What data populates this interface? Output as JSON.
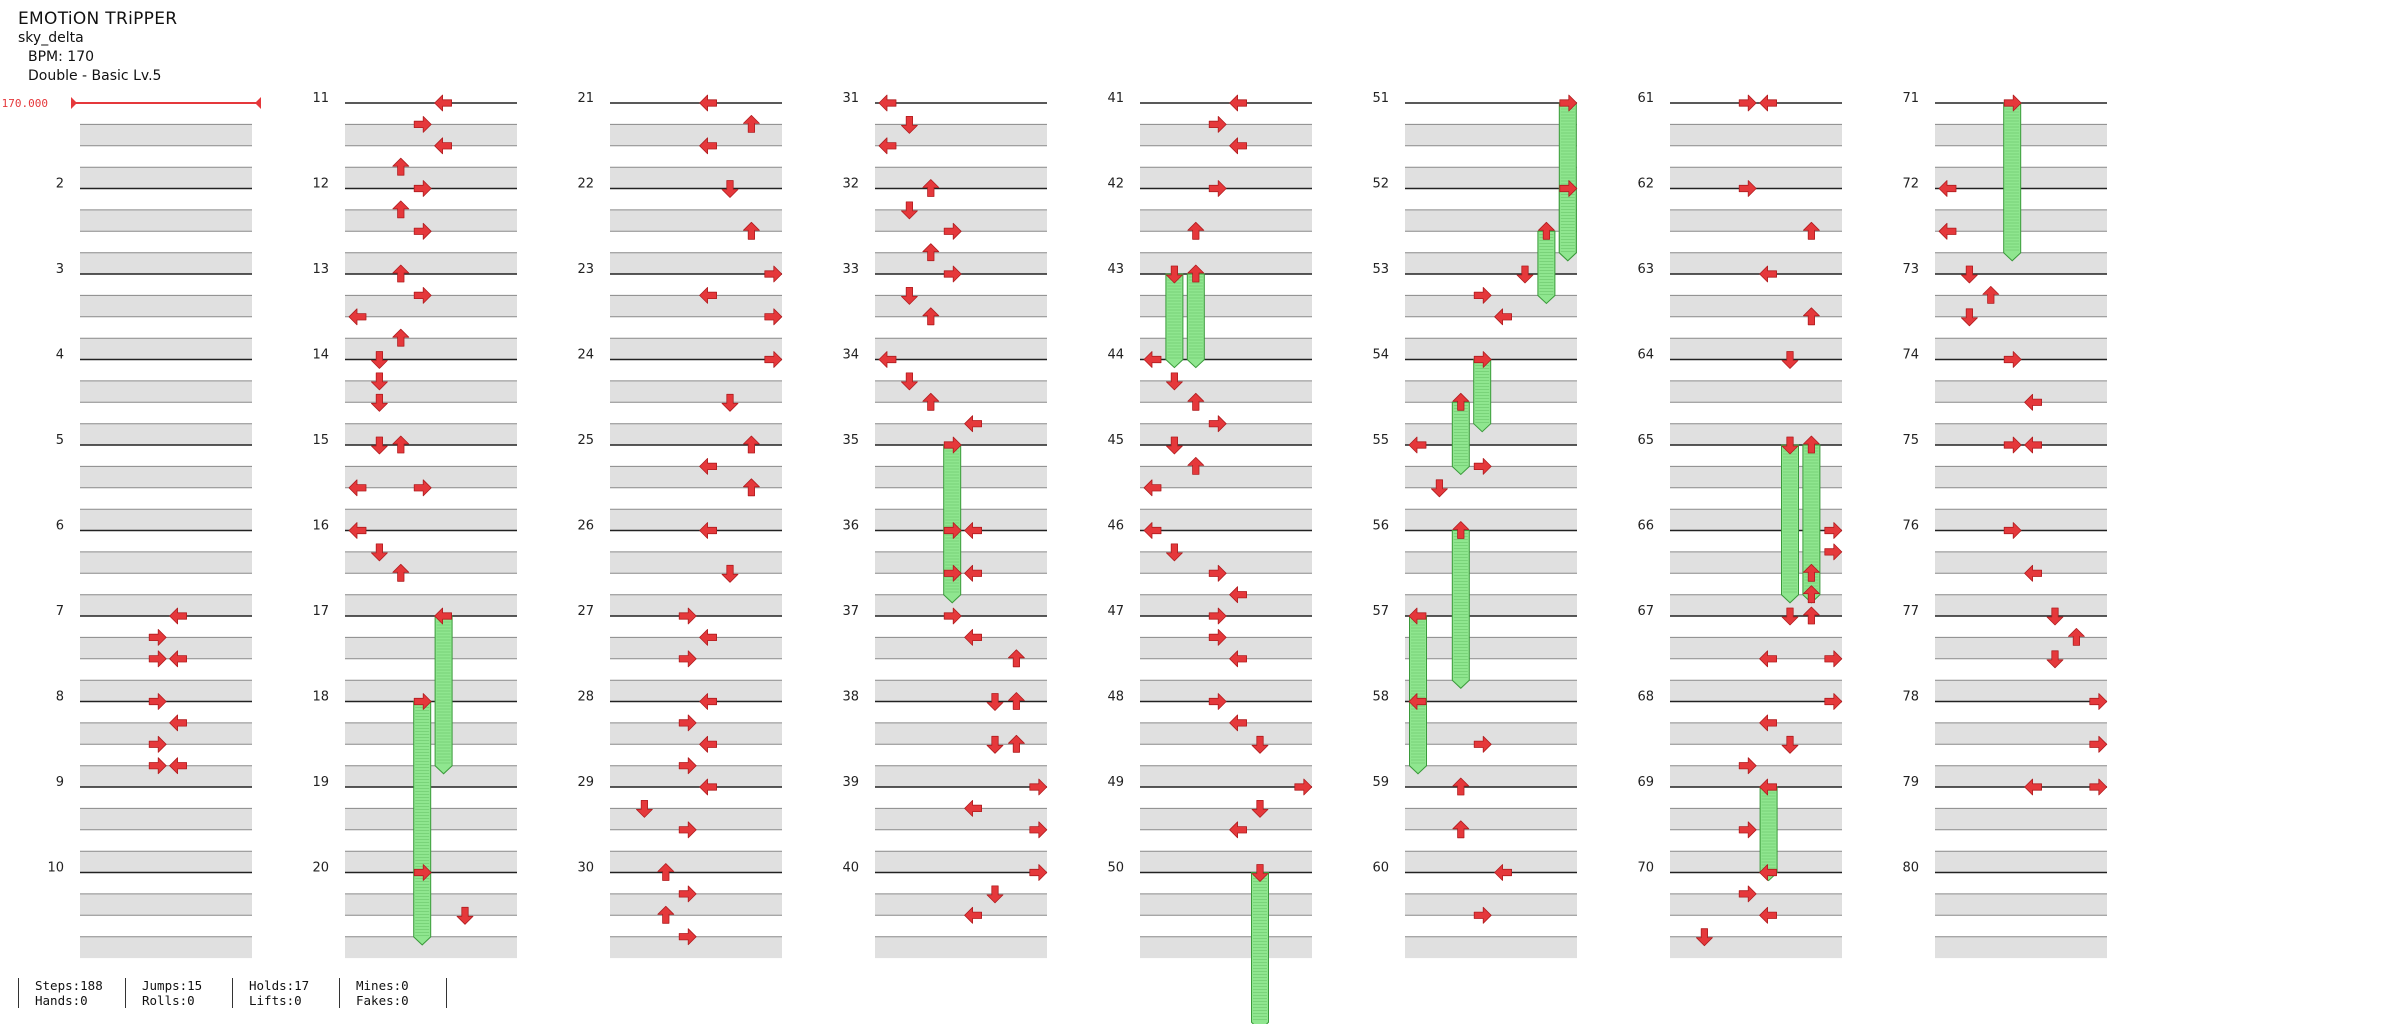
{
  "header": {
    "title": "EMOTiON TRiPPER",
    "artist": "sky_delta",
    "bpm_text": "BPM: 170",
    "difficulty_text": "Double - Basic  Lv.5"
  },
  "bpm_marker": {
    "label": "170.000"
  },
  "chart_data": {
    "type": "step-chart",
    "measures": 80,
    "columns": 8,
    "measures_per_column": 10,
    "lanes": 8,
    "measure_numbers": [
      "",
      "2",
      "3",
      "4",
      "5",
      "6",
      "7",
      "8",
      "9",
      "10",
      "11",
      "12",
      "13",
      "14",
      "15",
      "16",
      "17",
      "18",
      "19",
      "20",
      "21",
      "22",
      "23",
      "24",
      "25",
      "26",
      "27",
      "28",
      "29",
      "30",
      "31",
      "32",
      "33",
      "34",
      "35",
      "36",
      "37",
      "38",
      "39",
      "40",
      "41",
      "42",
      "43",
      "44",
      "45",
      "46",
      "47",
      "48",
      "49",
      "50",
      "51",
      "52",
      "53",
      "54",
      "55",
      "56",
      "57",
      "58",
      "59",
      "60",
      "61",
      "62",
      "63",
      "64",
      "65",
      "66",
      "67",
      "68",
      "69",
      "70",
      "71",
      "72",
      "73",
      "74",
      "75",
      "76",
      "77",
      "78",
      "79",
      "80"
    ],
    "note_types": {
      "L": "left",
      "D": "down",
      "U": "up",
      "R": "right"
    },
    "notes": [
      {
        "m": 7,
        "b": 0,
        "lane": 4,
        "t": "L"
      },
      {
        "m": 7,
        "b": 1,
        "lane": 3,
        "t": "R"
      },
      {
        "m": 7,
        "b": 2,
        "lane": 3,
        "t": "R"
      },
      {
        "m": 7,
        "b": 2,
        "lane": 4,
        "t": "L"
      },
      {
        "m": 8,
        "b": 0,
        "lane": 3,
        "t": "R"
      },
      {
        "m": 8,
        "b": 1,
        "lane": 4,
        "t": "L"
      },
      {
        "m": 8,
        "b": 2,
        "lane": 3,
        "t": "R"
      },
      {
        "m": 8,
        "b": 3,
        "lane": 3,
        "t": "R"
      },
      {
        "m": 8,
        "b": 3,
        "lane": 4,
        "t": "L"
      },
      {
        "m": 11,
        "b": 0,
        "lane": 4,
        "t": "L"
      },
      {
        "m": 11,
        "b": 1,
        "lane": 3,
        "t": "R"
      },
      {
        "m": 11,
        "b": 2,
        "lane": 4,
        "t": "L"
      },
      {
        "m": 11,
        "b": 3,
        "lane": 2,
        "t": "U"
      },
      {
        "m": 12,
        "b": 0,
        "lane": 3,
        "t": "R"
      },
      {
        "m": 12,
        "b": 1,
        "lane": 2,
        "t": "U"
      },
      {
        "m": 12,
        "b": 2,
        "lane": 3,
        "t": "R"
      },
      {
        "m": 13,
        "b": 0,
        "lane": 2,
        "t": "U"
      },
      {
        "m": 13,
        "b": 1,
        "lane": 3,
        "t": "R"
      },
      {
        "m": 13,
        "b": 2,
        "lane": 0,
        "t": "L"
      },
      {
        "m": 13,
        "b": 3,
        "lane": 2,
        "t": "U"
      },
      {
        "m": 14,
        "b": 0,
        "lane": 1,
        "t": "D"
      },
      {
        "m": 14,
        "b": 1,
        "lane": 1,
        "t": "D"
      },
      {
        "m": 14,
        "b": 2,
        "lane": 1,
        "t": "D"
      },
      {
        "m": 15,
        "b": 0,
        "lane": 1,
        "t": "D"
      },
      {
        "m": 15,
        "b": 0,
        "lane": 2,
        "t": "U"
      },
      {
        "m": 15,
        "b": 2,
        "lane": 0,
        "t": "L"
      },
      {
        "m": 15,
        "b": 2,
        "lane": 3,
        "t": "R"
      },
      {
        "m": 16,
        "b": 0,
        "lane": 0,
        "t": "L"
      },
      {
        "m": 16,
        "b": 1,
        "lane": 1,
        "t": "D"
      },
      {
        "m": 16,
        "b": 2,
        "lane": 2,
        "t": "U"
      },
      {
        "m": 17,
        "b": 0,
        "lane": 4,
        "t": "L",
        "hold": 1.75
      },
      {
        "m": 18,
        "b": 0,
        "lane": 3,
        "t": "R",
        "hold": 2.75
      },
      {
        "m": 20,
        "b": 0,
        "lane": 3,
        "t": "R"
      },
      {
        "m": 20,
        "b": 2,
        "lane": 5,
        "t": "D"
      },
      {
        "m": 21,
        "b": 0,
        "lane": 4,
        "t": "L"
      },
      {
        "m": 21,
        "b": 1,
        "lane": 6,
        "t": "U"
      },
      {
        "m": 21,
        "b": 2,
        "lane": 4,
        "t": "L"
      },
      {
        "m": 22,
        "b": 0,
        "lane": 5,
        "t": "D"
      },
      {
        "m": 22,
        "b": 2,
        "lane": 6,
        "t": "U"
      },
      {
        "m": 23,
        "b": 0,
        "lane": 7,
        "t": "R"
      },
      {
        "m": 23,
        "b": 1,
        "lane": 4,
        "t": "L"
      },
      {
        "m": 23,
        "b": 2,
        "lane": 7,
        "t": "R"
      },
      {
        "m": 24,
        "b": 0,
        "lane": 7,
        "t": "R"
      },
      {
        "m": 24,
        "b": 2,
        "lane": 5,
        "t": "D"
      },
      {
        "m": 25,
        "b": 0,
        "lane": 6,
        "t": "U"
      },
      {
        "m": 25,
        "b": 1,
        "lane": 4,
        "t": "L"
      },
      {
        "m": 25,
        "b": 2,
        "lane": 6,
        "t": "U"
      },
      {
        "m": 26,
        "b": 0,
        "lane": 4,
        "t": "L"
      },
      {
        "m": 26,
        "b": 2,
        "lane": 5,
        "t": "D"
      },
      {
        "m": 27,
        "b": 0,
        "lane": 3,
        "t": "R"
      },
      {
        "m": 27,
        "b": 1,
        "lane": 4,
        "t": "L"
      },
      {
        "m": 27,
        "b": 2,
        "lane": 3,
        "t": "R"
      },
      {
        "m": 28,
        "b": 0,
        "lane": 4,
        "t": "L"
      },
      {
        "m": 28,
        "b": 1,
        "lane": 3,
        "t": "R"
      },
      {
        "m": 28,
        "b": 2,
        "lane": 4,
        "t": "L"
      },
      {
        "m": 28,
        "b": 3,
        "lane": 3,
        "t": "R"
      },
      {
        "m": 29,
        "b": 0,
        "lane": 4,
        "t": "L"
      },
      {
        "m": 29,
        "b": 1,
        "lane": 1,
        "t": "D"
      },
      {
        "m": 29,
        "b": 2,
        "lane": 3,
        "t": "R"
      },
      {
        "m": 30,
        "b": 0,
        "lane": 2,
        "t": "U"
      },
      {
        "m": 30,
        "b": 1,
        "lane": 3,
        "t": "R"
      },
      {
        "m": 30,
        "b": 2,
        "lane": 2,
        "t": "U"
      },
      {
        "m": 30,
        "b": 3,
        "lane": 3,
        "t": "R"
      },
      {
        "m": 31,
        "b": 0,
        "lane": 0,
        "t": "L"
      },
      {
        "m": 31,
        "b": 1,
        "lane": 1,
        "t": "D"
      },
      {
        "m": 31,
        "b": 2,
        "lane": 0,
        "t": "L"
      },
      {
        "m": 32,
        "b": 0,
        "lane": 2,
        "t": "U"
      },
      {
        "m": 32,
        "b": 1,
        "lane": 1,
        "t": "D"
      },
      {
        "m": 32,
        "b": 2,
        "lane": 3,
        "t": "R"
      },
      {
        "m": 32,
        "b": 3,
        "lane": 2,
        "t": "U"
      },
      {
        "m": 33,
        "b": 0,
        "lane": 3,
        "t": "R"
      },
      {
        "m": 33,
        "b": 1,
        "lane": 1,
        "t": "D"
      },
      {
        "m": 33,
        "b": 2,
        "lane": 2,
        "t": "U"
      },
      {
        "m": 34,
        "b": 0,
        "lane": 0,
        "t": "L"
      },
      {
        "m": 34,
        "b": 1,
        "lane": 1,
        "t": "D"
      },
      {
        "m": 34,
        "b": 2,
        "lane": 2,
        "t": "U"
      },
      {
        "m": 34,
        "b": 3,
        "lane": 4,
        "t": "L"
      },
      {
        "m": 35,
        "b": 0,
        "lane": 3,
        "t": "R",
        "hold": 1.75
      },
      {
        "m": 36,
        "b": 0,
        "lane": 3,
        "t": "R"
      },
      {
        "m": 36,
        "b": 0,
        "lane": 4,
        "t": "L"
      },
      {
        "m": 36,
        "b": 2,
        "lane": 3,
        "t": "R"
      },
      {
        "m": 36,
        "b": 2,
        "lane": 4,
        "t": "L"
      },
      {
        "m": 37,
        "b": 0,
        "lane": 3,
        "t": "R"
      },
      {
        "m": 37,
        "b": 1,
        "lane": 4,
        "t": "L"
      },
      {
        "m": 37,
        "b": 2,
        "lane": 6,
        "t": "U"
      },
      {
        "m": 38,
        "b": 0,
        "lane": 5,
        "t": "D"
      },
      {
        "m": 38,
        "b": 0,
        "lane": 6,
        "t": "U"
      },
      {
        "m": 38,
        "b": 2,
        "lane": 5,
        "t": "D"
      },
      {
        "m": 38,
        "b": 2,
        "lane": 6,
        "t": "U"
      },
      {
        "m": 39,
        "b": 0,
        "lane": 7,
        "t": "R"
      },
      {
        "m": 39,
        "b": 1,
        "lane": 4,
        "t": "L"
      },
      {
        "m": 39,
        "b": 2,
        "lane": 7,
        "t": "R"
      },
      {
        "m": 40,
        "b": 0,
        "lane": 7,
        "t": "R"
      },
      {
        "m": 40,
        "b": 1,
        "lane": 5,
        "t": "D"
      },
      {
        "m": 40,
        "b": 2,
        "lane": 4,
        "t": "L"
      },
      {
        "m": 41,
        "b": 0,
        "lane": 4,
        "t": "L"
      },
      {
        "m": 41,
        "b": 1,
        "lane": 3,
        "t": "R"
      },
      {
        "m": 41,
        "b": 2,
        "lane": 4,
        "t": "L"
      },
      {
        "m": 42,
        "b": 0,
        "lane": 3,
        "t": "R"
      },
      {
        "m": 42,
        "b": 2,
        "lane": 2,
        "t": "U"
      },
      {
        "m": 43,
        "b": 0,
        "lane": 1,
        "t": "D",
        "hold": 1
      },
      {
        "m": 43,
        "b": 0,
        "lane": 2,
        "t": "U",
        "hold": 1
      },
      {
        "m": 44,
        "b": 0,
        "lane": 0,
        "t": "L"
      },
      {
        "m": 44,
        "b": 1,
        "lane": 1,
        "t": "D"
      },
      {
        "m": 44,
        "b": 2,
        "lane": 2,
        "t": "U"
      },
      {
        "m": 44,
        "b": 3,
        "lane": 3,
        "t": "R"
      },
      {
        "m": 45,
        "b": 0,
        "lane": 1,
        "t": "D"
      },
      {
        "m": 45,
        "b": 1,
        "lane": 2,
        "t": "U"
      },
      {
        "m": 45,
        "b": 2,
        "lane": 0,
        "t": "L"
      },
      {
        "m": 46,
        "b": 0,
        "lane": 0,
        "t": "L"
      },
      {
        "m": 46,
        "b": 1,
        "lane": 1,
        "t": "D"
      },
      {
        "m": 46,
        "b": 2,
        "lane": 3,
        "t": "R"
      },
      {
        "m": 46,
        "b": 3,
        "lane": 4,
        "t": "L"
      },
      {
        "m": 47,
        "b": 0,
        "lane": 3,
        "t": "R"
      },
      {
        "m": 47,
        "b": 1,
        "lane": 3,
        "t": "R"
      },
      {
        "m": 47,
        "b": 2,
        "lane": 4,
        "t": "L"
      },
      {
        "m": 48,
        "b": 0,
        "lane": 3,
        "t": "R"
      },
      {
        "m": 48,
        "b": 1,
        "lane": 4,
        "t": "L"
      },
      {
        "m": 48,
        "b": 2,
        "lane": 5,
        "t": "D"
      },
      {
        "m": 49,
        "b": 0,
        "lane": 7,
        "t": "R"
      },
      {
        "m": 49,
        "b": 1,
        "lane": 5,
        "t": "D"
      },
      {
        "m": 49,
        "b": 2,
        "lane": 4,
        "t": "L"
      },
      {
        "m": 50,
        "b": 0,
        "lane": 5,
        "t": "D",
        "hold": 1.75
      },
      {
        "m": 51,
        "b": 0,
        "lane": 7,
        "t": "R",
        "hold": 1.75
      },
      {
        "m": 52,
        "b": 0,
        "lane": 7,
        "t": "R",
        "hold": 0.75
      },
      {
        "m": 52,
        "b": 2,
        "lane": 6,
        "t": "U",
        "hold": 0.75
      },
      {
        "m": 53,
        "b": 0,
        "lane": 5,
        "t": "D"
      },
      {
        "m": 53,
        "b": 1,
        "lane": 3,
        "t": "R"
      },
      {
        "m": 53,
        "b": 2,
        "lane": 4,
        "t": "L"
      },
      {
        "m": 54,
        "b": 0,
        "lane": 3,
        "t": "R",
        "hold": 0.75
      },
      {
        "m": 54,
        "b": 2,
        "lane": 2,
        "t": "U",
        "hold": 0.75
      },
      {
        "m": 55,
        "b": 0,
        "lane": 0,
        "t": "L"
      },
      {
        "m": 55,
        "b": 1,
        "lane": 3,
        "t": "R"
      },
      {
        "m": 55,
        "b": 2,
        "lane": 1,
        "t": "D"
      },
      {
        "m": 56,
        "b": 0,
        "lane": 2,
        "t": "U",
        "hold": 1.75
      },
      {
        "m": 57,
        "b": 0,
        "lane": 0,
        "t": "L",
        "hold": 1.75
      },
      {
        "m": 58,
        "b": 0,
        "lane": 0,
        "t": "L"
      },
      {
        "m": 58,
        "b": 2,
        "lane": 3,
        "t": "R"
      },
      {
        "m": 59,
        "b": 0,
        "lane": 2,
        "t": "U"
      },
      {
        "m": 59,
        "b": 2,
        "lane": 2,
        "t": "U"
      },
      {
        "m": 60,
        "b": 0,
        "lane": 4,
        "t": "L"
      },
      {
        "m": 60,
        "b": 2,
        "lane": 3,
        "t": "R"
      },
      {
        "m": 61,
        "b": 0,
        "lane": 3,
        "t": "R"
      },
      {
        "m": 61,
        "b": 0,
        "lane": 4,
        "t": "L"
      },
      {
        "m": 62,
        "b": 0,
        "lane": 3,
        "t": "R"
      },
      {
        "m": 62,
        "b": 2,
        "lane": 6,
        "t": "U"
      },
      {
        "m": 63,
        "b": 0,
        "lane": 4,
        "t": "L"
      },
      {
        "m": 63,
        "b": 2,
        "lane": 6,
        "t": "U"
      },
      {
        "m": 64,
        "b": 0,
        "lane": 5,
        "t": "D"
      },
      {
        "m": 65,
        "b": 0,
        "lane": 5,
        "t": "D",
        "hold": 1.75
      },
      {
        "m": 65,
        "b": 0,
        "lane": 6,
        "t": "U",
        "hold": 1.75
      },
      {
        "m": 66,
        "b": 0,
        "lane": 7,
        "t": "R"
      },
      {
        "m": 66,
        "b": 1,
        "lane": 7,
        "t": "R"
      },
      {
        "m": 66,
        "b": 2,
        "lane": 6,
        "t": "U"
      },
      {
        "m": 66,
        "b": 3,
        "lane": 6,
        "t": "U"
      },
      {
        "m": 67,
        "b": 0,
        "lane": 5,
        "t": "D"
      },
      {
        "m": 67,
        "b": 0,
        "lane": 6,
        "t": "U"
      },
      {
        "m": 67,
        "b": 2,
        "lane": 4,
        "t": "L"
      },
      {
        "m": 67,
        "b": 2,
        "lane": 7,
        "t": "R"
      },
      {
        "m": 68,
        "b": 0,
        "lane": 7,
        "t": "R"
      },
      {
        "m": 68,
        "b": 1,
        "lane": 4,
        "t": "L"
      },
      {
        "m": 68,
        "b": 2,
        "lane": 5,
        "t": "D"
      },
      {
        "m": 68,
        "b": 3,
        "lane": 3,
        "t": "R"
      },
      {
        "m": 69,
        "b": 0,
        "lane": 4,
        "t": "L",
        "hold": 1
      },
      {
        "m": 69,
        "b": 2,
        "lane": 3,
        "t": "R"
      },
      {
        "m": 70,
        "b": 0,
        "lane": 4,
        "t": "L"
      },
      {
        "m": 70,
        "b": 1,
        "lane": 3,
        "t": "R"
      },
      {
        "m": 70,
        "b": 2,
        "lane": 4,
        "t": "L"
      },
      {
        "m": 70,
        "b": 3,
        "lane": 1,
        "t": "D"
      },
      {
        "m": 71,
        "b": 0,
        "lane": 3,
        "t": "R",
        "hold": 1.75
      },
      {
        "m": 72,
        "b": 0,
        "lane": 0,
        "t": "L"
      },
      {
        "m": 72,
        "b": 2,
        "lane": 0,
        "t": "L"
      },
      {
        "m": 73,
        "b": 0,
        "lane": 1,
        "t": "D"
      },
      {
        "m": 73,
        "b": 1,
        "lane": 2,
        "t": "U"
      },
      {
        "m": 73,
        "b": 2,
        "lane": 1,
        "t": "D"
      },
      {
        "m": 74,
        "b": 0,
        "lane": 3,
        "t": "R"
      },
      {
        "m": 74,
        "b": 2,
        "lane": 4,
        "t": "L"
      },
      {
        "m": 75,
        "b": 0,
        "lane": 3,
        "t": "R"
      },
      {
        "m": 75,
        "b": 0,
        "lane": 4,
        "t": "L"
      },
      {
        "m": 76,
        "b": 0,
        "lane": 3,
        "t": "R"
      },
      {
        "m": 76,
        "b": 2,
        "lane": 4,
        "t": "L"
      },
      {
        "m": 77,
        "b": 0,
        "lane": 5,
        "t": "D"
      },
      {
        "m": 77,
        "b": 1,
        "lane": 6,
        "t": "U"
      },
      {
        "m": 77,
        "b": 2,
        "lane": 5,
        "t": "D"
      },
      {
        "m": 78,
        "b": 0,
        "lane": 7,
        "t": "R"
      },
      {
        "m": 78,
        "b": 2,
        "lane": 7,
        "t": "R"
      },
      {
        "m": 79,
        "b": 0,
        "lane": 4,
        "t": "L"
      },
      {
        "m": 79,
        "b": 0,
        "lane": 7,
        "t": "R"
      }
    ]
  },
  "colors": {
    "arrow": "#e5383b",
    "arrow_edge": "#b01c1f",
    "hold": "#8fe68f",
    "hold_edge": "#3a9a3a",
    "stripe": "#e0e0e0",
    "measure_line": "#222222",
    "beat_line": "#8a8a8a",
    "bpm_marker": "#e5383b"
  },
  "stats": [
    {
      "top": "Steps:188",
      "bottom": "Hands:0"
    },
    {
      "top": "Jumps:15",
      "bottom": "Rolls:0"
    },
    {
      "top": "Holds:17",
      "bottom": "Lifts:0"
    },
    {
      "top": "Mines:0",
      "bottom": "Fakes:0"
    }
  ]
}
